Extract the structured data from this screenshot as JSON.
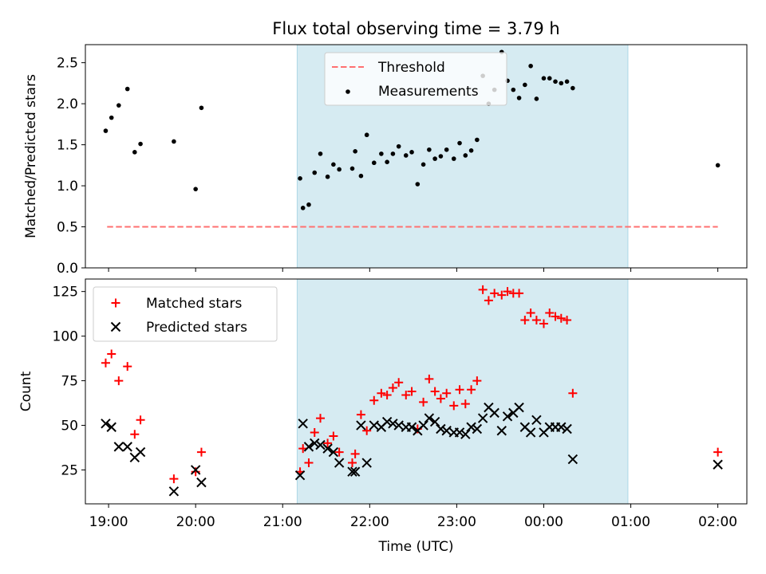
{
  "chart_data": [
    {
      "type": "scatter",
      "title": "Flux total observing time = 3.79 h",
      "xlabel": "",
      "ylabel": "Matched/Predicted stars",
      "xlim": [
        "18:44",
        "02:20"
      ],
      "ylim": [
        0.0,
        2.72
      ],
      "x_ticks": [
        "19:00",
        "20:00",
        "21:00",
        "22:00",
        "23:00",
        "00:00",
        "01:00",
        "02:00"
      ],
      "y_ticks": [
        "0.0",
        "0.5",
        "1.0",
        "1.5",
        "2.0",
        "2.5"
      ],
      "shaded_region": {
        "start": "21:10",
        "end": "00:58",
        "color": "#add8e6"
      },
      "legend": {
        "placement": "top-center",
        "entries": [
          {
            "label": "Threshold",
            "style": "dashed-line",
            "color": "#ff6060"
          },
          {
            "label": "Measurements",
            "style": "dot",
            "color": "#000000"
          }
        ]
      },
      "threshold": {
        "name": "Threshold",
        "value": 0.5,
        "x_start": "18:59",
        "x_end": "02:00"
      },
      "series": [
        {
          "name": "Measurements",
          "color": "#000000",
          "points": [
            [
              "18:58",
              1.67
            ],
            [
              "19:02",
              1.83
            ],
            [
              "19:07",
              1.98
            ],
            [
              "19:13",
              2.18
            ],
            [
              "19:18",
              1.41
            ],
            [
              "19:22",
              1.51
            ],
            [
              "19:45",
              1.54
            ],
            [
              "20:00",
              0.96
            ],
            [
              "20:04",
              1.95
            ],
            [
              "21:12",
              1.09
            ],
            [
              "21:14",
              0.73
            ],
            [
              "21:18",
              0.77
            ],
            [
              "21:22",
              1.16
            ],
            [
              "21:26",
              1.39
            ],
            [
              "21:31",
              1.11
            ],
            [
              "21:35",
              1.26
            ],
            [
              "21:39",
              1.2
            ],
            [
              "21:48",
              1.21
            ],
            [
              "21:50",
              1.42
            ],
            [
              "21:54",
              1.12
            ],
            [
              "21:58",
              1.62
            ],
            [
              "22:03",
              1.28
            ],
            [
              "22:08",
              1.39
            ],
            [
              "22:12",
              1.29
            ],
            [
              "22:16",
              1.39
            ],
            [
              "22:20",
              1.48
            ],
            [
              "22:25",
              1.37
            ],
            [
              "22:29",
              1.41
            ],
            [
              "22:33",
              1.02
            ],
            [
              "22:37",
              1.26
            ],
            [
              "22:41",
              1.44
            ],
            [
              "22:45",
              1.33
            ],
            [
              "22:49",
              1.36
            ],
            [
              "22:53",
              1.44
            ],
            [
              "22:58",
              1.33
            ],
            [
              "23:02",
              1.52
            ],
            [
              "23:06",
              1.37
            ],
            [
              "23:10",
              1.43
            ],
            [
              "23:14",
              1.56
            ],
            [
              "23:18",
              2.34
            ],
            [
              "23:22",
              2.0
            ],
            [
              "23:26",
              2.17
            ],
            [
              "23:31",
              2.63
            ],
            [
              "23:35",
              2.28
            ],
            [
              "23:39",
              2.17
            ],
            [
              "23:43",
              2.07
            ],
            [
              "23:47",
              2.23
            ],
            [
              "23:51",
              2.46
            ],
            [
              "23:55",
              2.06
            ],
            [
              "00:00",
              2.31
            ],
            [
              "00:04",
              2.31
            ],
            [
              "00:08",
              2.27
            ],
            [
              "00:12",
              2.25
            ],
            [
              "00:16",
              2.27
            ],
            [
              "00:20",
              2.19
            ],
            [
              "02:00",
              1.25
            ]
          ]
        }
      ]
    },
    {
      "type": "scatter",
      "title": "",
      "xlabel": "Time (UTC)",
      "ylabel": "Count",
      "xlim": [
        "18:44",
        "02:20"
      ],
      "ylim": [
        6,
        132
      ],
      "x_ticks": [
        "19:00",
        "20:00",
        "21:00",
        "22:00",
        "23:00",
        "00:00",
        "01:00",
        "02:00"
      ],
      "y_ticks": [
        "25",
        "50",
        "75",
        "100",
        "125"
      ],
      "shaded_region": {
        "start": "21:10",
        "end": "00:58",
        "color": "#add8e6"
      },
      "legend": {
        "placement": "top-left",
        "entries": [
          {
            "label": "Matched stars",
            "style": "plus",
            "color": "#ff0000"
          },
          {
            "label": "Predicted stars",
            "style": "x",
            "color": "#000000"
          }
        ]
      },
      "series": [
        {
          "name": "Matched stars",
          "marker": "plus",
          "color": "#ff0000",
          "points": [
            [
              "18:58",
              85
            ],
            [
              "19:02",
              90
            ],
            [
              "19:07",
              75
            ],
            [
              "19:13",
              83
            ],
            [
              "19:18",
              45
            ],
            [
              "19:22",
              53
            ],
            [
              "19:45",
              20
            ],
            [
              "20:00",
              24
            ],
            [
              "20:04",
              35
            ],
            [
              "21:12",
              24
            ],
            [
              "21:14",
              37
            ],
            [
              "21:18",
              29
            ],
            [
              "21:22",
              46
            ],
            [
              "21:26",
              54
            ],
            [
              "21:31",
              40
            ],
            [
              "21:35",
              44
            ],
            [
              "21:39",
              35
            ],
            [
              "21:48",
              29
            ],
            [
              "21:50",
              34
            ],
            [
              "21:54",
              56
            ],
            [
              "21:58",
              47
            ],
            [
              "22:03",
              64
            ],
            [
              "22:08",
              68
            ],
            [
              "22:12",
              67
            ],
            [
              "22:16",
              71
            ],
            [
              "22:20",
              74
            ],
            [
              "22:25",
              67
            ],
            [
              "22:29",
              69
            ],
            [
              "22:33",
              48
            ],
            [
              "22:37",
              63
            ],
            [
              "22:41",
              76
            ],
            [
              "22:45",
              69
            ],
            [
              "22:49",
              65
            ],
            [
              "22:53",
              68
            ],
            [
              "22:58",
              61
            ],
            [
              "23:02",
              70
            ],
            [
              "23:06",
              62
            ],
            [
              "23:10",
              70
            ],
            [
              "23:14",
              75
            ],
            [
              "23:18",
              126
            ],
            [
              "23:22",
              120
            ],
            [
              "23:26",
              124
            ],
            [
              "23:31",
              123
            ],
            [
              "23:35",
              125
            ],
            [
              "23:39",
              124
            ],
            [
              "23:43",
              124
            ],
            [
              "23:47",
              109
            ],
            [
              "23:51",
              113
            ],
            [
              "23:55",
              109
            ],
            [
              "00:00",
              107
            ],
            [
              "00:04",
              113
            ],
            [
              "00:08",
              111
            ],
            [
              "00:12",
              110
            ],
            [
              "00:16",
              109
            ],
            [
              "00:20",
              68
            ],
            [
              "02:00",
              35
            ]
          ]
        },
        {
          "name": "Predicted stars",
          "marker": "x",
          "color": "#000000",
          "points": [
            [
              "18:58",
              51
            ],
            [
              "19:02",
              49
            ],
            [
              "19:07",
              38
            ],
            [
              "19:13",
              38
            ],
            [
              "19:18",
              32
            ],
            [
              "19:22",
              35
            ],
            [
              "19:45",
              13
            ],
            [
              "20:00",
              25
            ],
            [
              "20:04",
              18
            ],
            [
              "21:12",
              22
            ],
            [
              "21:14",
              51
            ],
            [
              "21:18",
              38
            ],
            [
              "21:22",
              40
            ],
            [
              "21:26",
              39
            ],
            [
              "21:31",
              37
            ],
            [
              "21:35",
              35
            ],
            [
              "21:39",
              29
            ],
            [
              "21:48",
              24
            ],
            [
              "21:50",
              24
            ],
            [
              "21:54",
              50
            ],
            [
              "21:58",
              29
            ],
            [
              "22:03",
              50
            ],
            [
              "22:08",
              49
            ],
            [
              "22:12",
              52
            ],
            [
              "22:16",
              51
            ],
            [
              "22:20",
              50
            ],
            [
              "22:25",
              49
            ],
            [
              "22:29",
              49
            ],
            [
              "22:33",
              47
            ],
            [
              "22:37",
              50
            ],
            [
              "22:41",
              54
            ],
            [
              "22:45",
              52
            ],
            [
              "22:49",
              48
            ],
            [
              "22:53",
              47
            ],
            [
              "22:58",
              46
            ],
            [
              "23:02",
              46
            ],
            [
              "23:06",
              45
            ],
            [
              "23:10",
              49
            ],
            [
              "23:14",
              48
            ],
            [
              "23:18",
              54
            ],
            [
              "23:22",
              60
            ],
            [
              "23:26",
              57
            ],
            [
              "23:31",
              47
            ],
            [
              "23:35",
              55
            ],
            [
              "23:39",
              57
            ],
            [
              "23:43",
              60
            ],
            [
              "23:47",
              49
            ],
            [
              "23:51",
              46
            ],
            [
              "23:55",
              53
            ],
            [
              "00:00",
              46
            ],
            [
              "00:04",
              49
            ],
            [
              "00:08",
              49
            ],
            [
              "00:12",
              49
            ],
            [
              "00:16",
              48
            ],
            [
              "00:20",
              31
            ],
            [
              "02:00",
              28
            ]
          ]
        }
      ]
    }
  ]
}
